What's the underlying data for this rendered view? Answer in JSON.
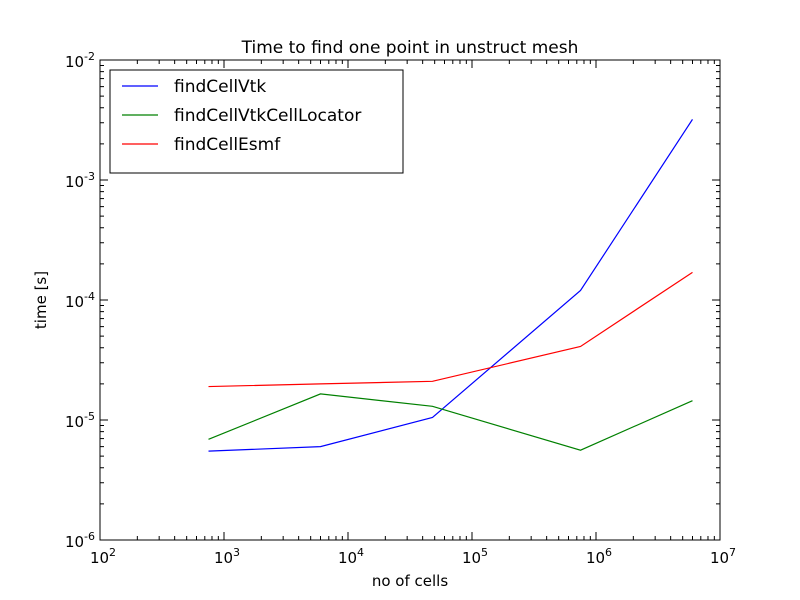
{
  "chart_data": {
    "type": "line",
    "title": "Time to find one point in unstruct mesh",
    "xlabel": "no of cells",
    "ylabel": "time [s]",
    "xscale": "log",
    "yscale": "log",
    "xlim": [
      100,
      10000000
    ],
    "ylim": [
      1e-06,
      0.01
    ],
    "grid": false,
    "legend_position": "top-left",
    "x_ticks": [
      {
        "value": 100,
        "base": "10",
        "exp": "2"
      },
      {
        "value": 1000,
        "base": "10",
        "exp": "3"
      },
      {
        "value": 10000,
        "base": "10",
        "exp": "4"
      },
      {
        "value": 100000,
        "base": "10",
        "exp": "5"
      },
      {
        "value": 1000000,
        "base": "10",
        "exp": "6"
      },
      {
        "value": 10000000,
        "base": "10",
        "exp": "7"
      }
    ],
    "y_ticks": [
      {
        "value": 1e-06,
        "base": "10",
        "exp": "-6"
      },
      {
        "value": 1e-05,
        "base": "10",
        "exp": "-5"
      },
      {
        "value": 0.0001,
        "base": "10",
        "exp": "-4"
      },
      {
        "value": 0.001,
        "base": "10",
        "exp": "-3"
      },
      {
        "value": 0.01,
        "base": "10",
        "exp": "-2"
      }
    ],
    "x": [
      750,
      6000,
      48000,
      750000,
      6000000
    ],
    "series": [
      {
        "name": "findCellVtk",
        "color": "#0000ff",
        "values": [
          5.5e-06,
          6e-06,
          1.05e-05,
          0.00012,
          0.0032
        ]
      },
      {
        "name": "findCellVtkCellLocator",
        "color": "#008000",
        "values": [
          6.9e-06,
          1.65e-05,
          1.3e-05,
          5.6e-06,
          1.45e-05
        ]
      },
      {
        "name": "findCellEsmf",
        "color": "#ff0000",
        "values": [
          1.9e-05,
          2e-05,
          2.1e-05,
          4.1e-05,
          0.00017
        ]
      }
    ]
  }
}
